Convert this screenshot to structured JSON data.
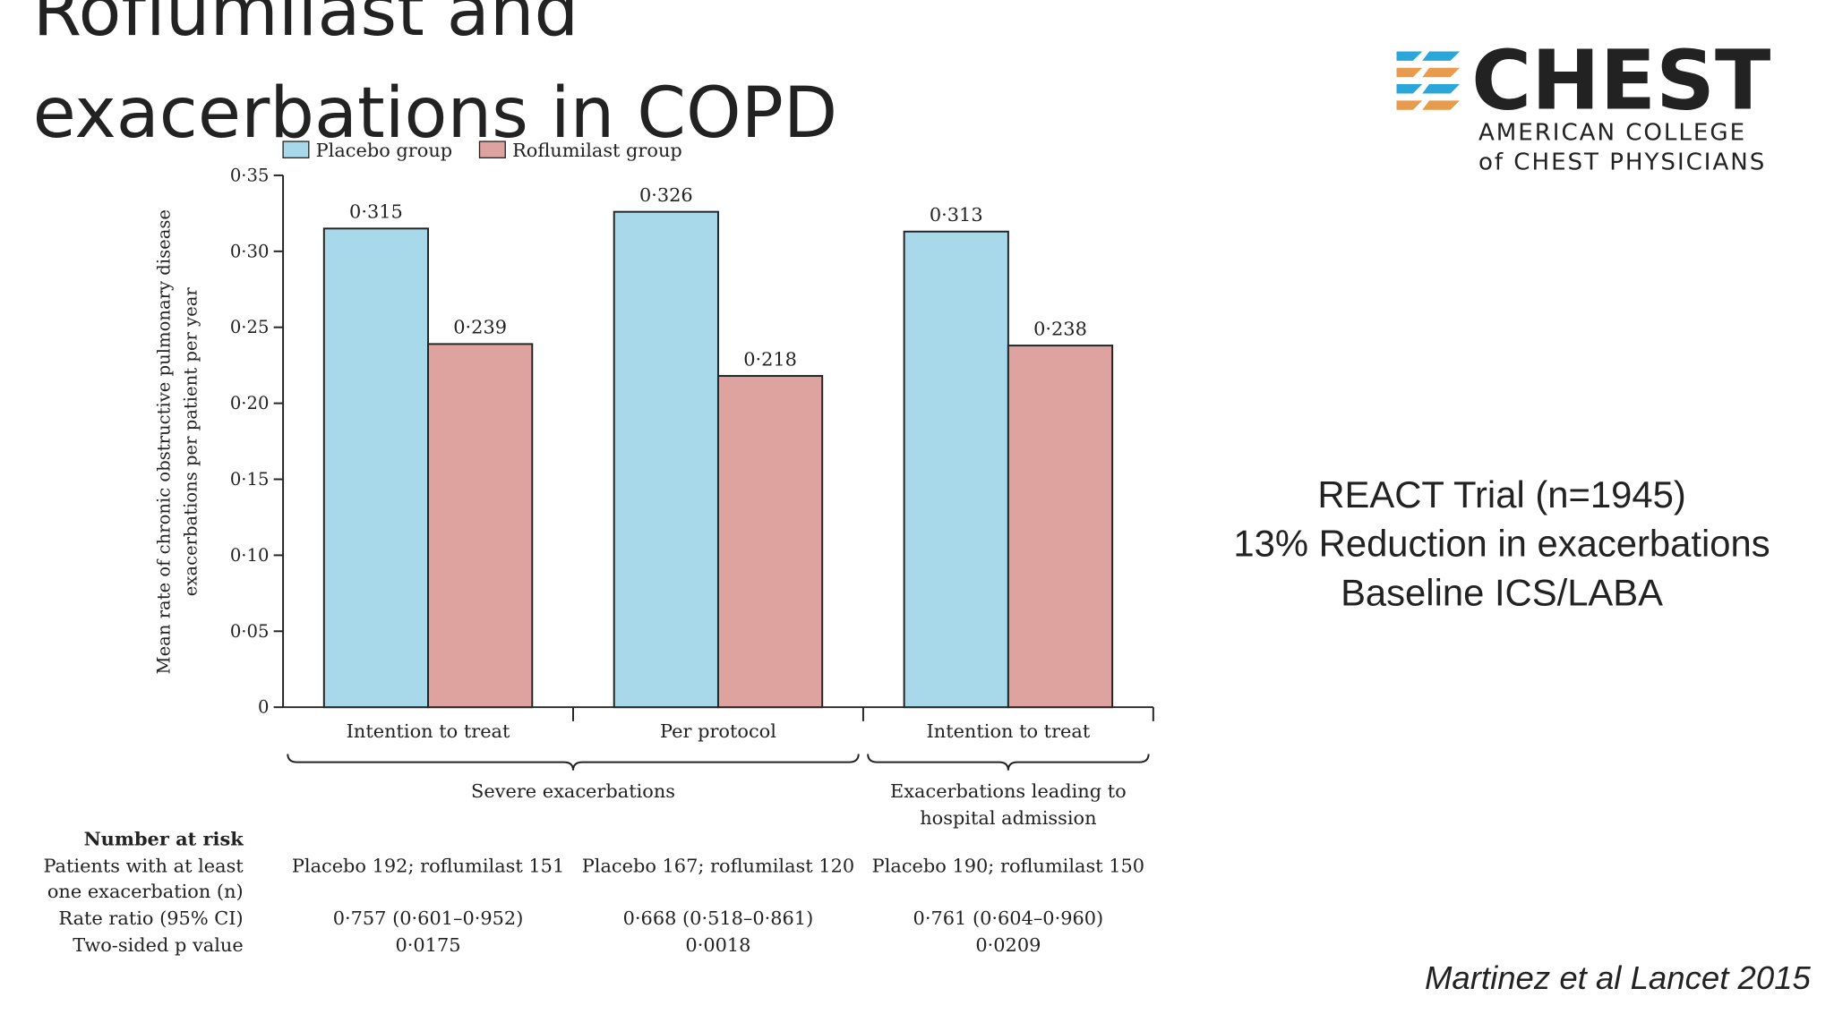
{
  "slide": {
    "title": [
      "Roflumilast and",
      "exacerbations in COPD"
    ],
    "notes": [
      "REACT Trial (n=1945)",
      "13% Reduction in exacerbations",
      "Baseline ICS/LABA"
    ],
    "citation": "Martinez et al Lancet 2015"
  },
  "logo": {
    "name": "CHEST",
    "line1": "AMERICAN COLLEGE",
    "line2": "of CHEST PHYSICIANS"
  },
  "chart_data": {
    "type": "bar",
    "y_label": [
      "Mean rate of chronic obstructive pulmonary disease",
      "exacerbations per patient per year"
    ],
    "categories": [
      "Intention to treat",
      "Per protocol",
      "Intention to treat"
    ],
    "groups": [
      {
        "label": [
          "Severe exacerbations"
        ],
        "span": [
          0,
          1
        ]
      },
      {
        "label": [
          "Exacerbations leading to",
          "hospital admission"
        ],
        "span": [
          2,
          2
        ]
      }
    ],
    "series": [
      {
        "name": "Placebo group",
        "color": "#a8d9ea",
        "values": [
          0.315,
          0.326,
          0.313
        ],
        "value_labels": [
          "0·315",
          "0·326",
          "0·313"
        ]
      },
      {
        "name": "Roflumilast group",
        "color": "#dfa39f",
        "values": [
          0.239,
          0.218,
          0.238
        ],
        "value_labels": [
          "0·239",
          "0·218",
          "0·238"
        ]
      }
    ],
    "ylim": [
      0,
      0.35
    ],
    "yticks": [
      0,
      {
        "value": 0.05,
        "label": "0·05"
      },
      {
        "value": 0.1,
        "label": "0·10"
      },
      {
        "value": 0.15,
        "label": "0·15"
      },
      {
        "value": 0.2,
        "label": "0·20"
      },
      {
        "value": 0.25,
        "label": "0·25"
      },
      {
        "value": 0.3,
        "label": "0·30"
      },
      {
        "value": 0.35,
        "label": "0·35"
      }
    ],
    "legend": "top-left"
  },
  "table": {
    "header": "Number at risk",
    "rows": [
      {
        "label": [
          "Patients with at least",
          "one exacerbation (n)"
        ],
        "cells": [
          "Placebo 192; roflumilast 151",
          "Placebo 167; roflumilast 120",
          "Placebo 190; roflumilast 150"
        ]
      },
      {
        "label": [
          "Rate ratio (95% CI)"
        ],
        "cells": [
          "0·757 (0·601–0·952)",
          "0·668 (0·518–0·861)",
          "0·761 (0·604–0·960)"
        ]
      },
      {
        "label": [
          "Two-sided p value"
        ],
        "cells": [
          "0·0175",
          "0·0018",
          "0·0209"
        ]
      }
    ]
  }
}
